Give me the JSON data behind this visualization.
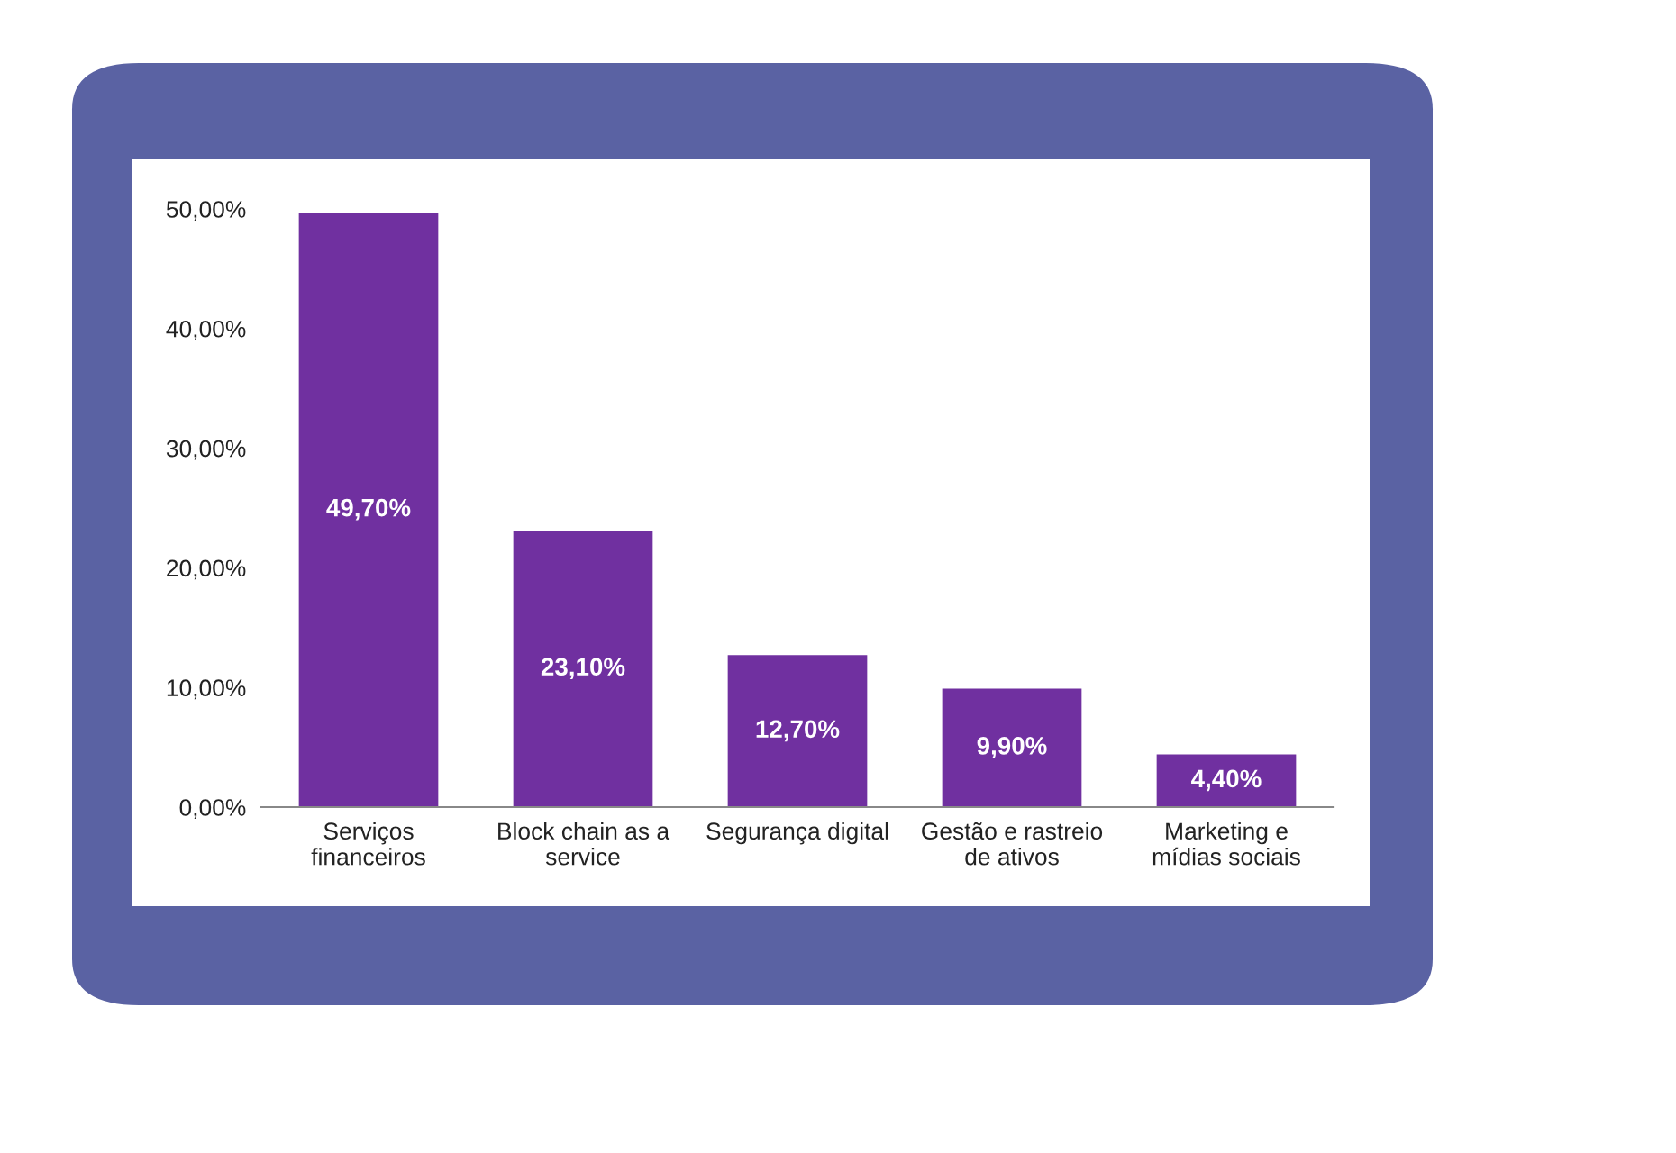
{
  "chart_data": {
    "type": "bar",
    "categories": [
      "Serviços\nfinanceiros",
      "Block chain as a\nservice",
      "Segurança digital",
      "Gestão e rastreio\nde ativos",
      "Marketing e\nmídias sociais"
    ],
    "values": [
      49.7,
      23.1,
      12.7,
      9.9,
      4.4
    ],
    "value_labels": [
      "49,70%",
      "23,10%",
      "12,70%",
      "9,90%",
      "4,40%"
    ],
    "color": "#7030a0",
    "ylim": [
      0,
      50
    ],
    "yticks": [
      {
        "value": 0,
        "label": "0,00%"
      },
      {
        "value": 10,
        "label": "10,00%"
      },
      {
        "value": 20,
        "label": "20,00%"
      },
      {
        "value": 30,
        "label": "30,00%"
      },
      {
        "value": 40,
        "label": "40,00%"
      },
      {
        "value": 50,
        "label": "50,00%"
      }
    ],
    "grid": false
  }
}
